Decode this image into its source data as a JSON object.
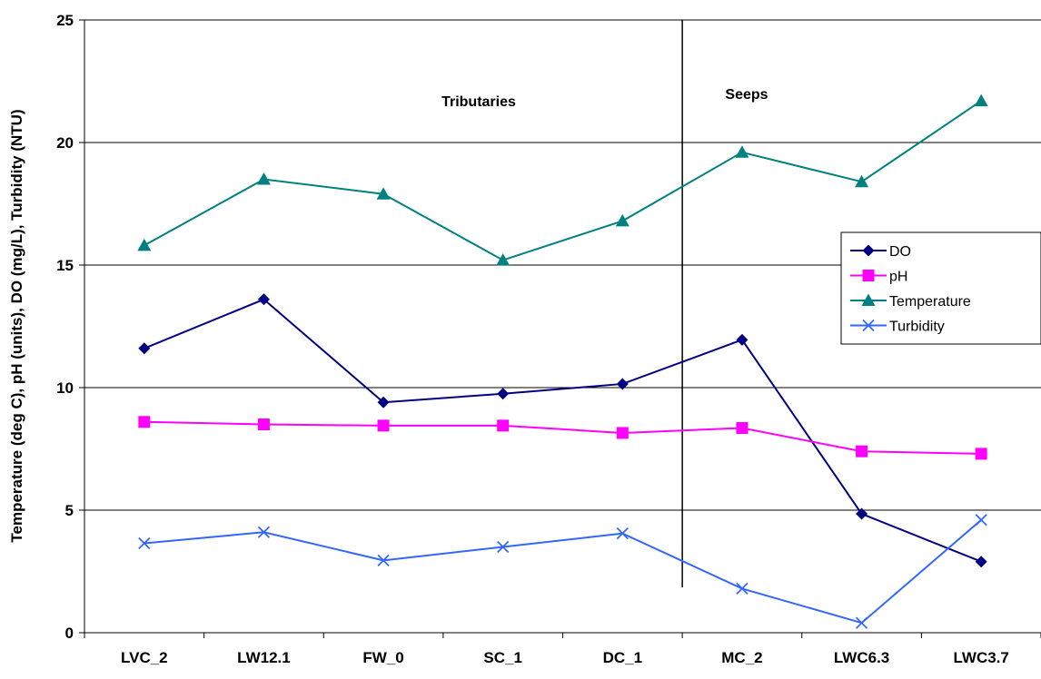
{
  "chart_data": {
    "type": "line",
    "categories": [
      "LVC_2",
      "LW12.1",
      "FW_0",
      "SC_1",
      "DC_1",
      "MC_2",
      "LWC6.3",
      "LWC3.7"
    ],
    "series": [
      {
        "name": "DO",
        "color": "#000080",
        "marker": "diamond",
        "values": [
          11.6,
          13.6,
          9.4,
          9.75,
          10.15,
          11.95,
          4.85,
          2.9
        ]
      },
      {
        "name": "pH",
        "color": "#ff00ff",
        "marker": "square",
        "values": [
          8.6,
          8.5,
          8.45,
          8.45,
          8.15,
          8.35,
          7.4,
          7.3
        ]
      },
      {
        "name": "Temperature",
        "color": "#008080",
        "marker": "triangle",
        "values": [
          15.8,
          18.5,
          17.9,
          15.2,
          16.8,
          19.6,
          18.4,
          21.7
        ]
      },
      {
        "name": "Turbidity",
        "color": "#3366ff",
        "marker": "x",
        "values": [
          3.65,
          4.1,
          2.95,
          3.5,
          4.05,
          1.8,
          0.4,
          4.6
        ]
      }
    ],
    "ylabel": "Temperature (deg C), pH (units), DO (mg/L), Turbidity (NTU)",
    "xlabel": "",
    "ylim": [
      0,
      25
    ],
    "yticks": [
      0,
      5,
      10,
      15,
      20,
      25
    ],
    "grid": true,
    "legend_position": "right",
    "annotations": [
      {
        "text": "Tributaries"
      },
      {
        "text": "Seeps"
      }
    ],
    "divider_between": [
      "DC_1",
      "MC_2"
    ]
  }
}
